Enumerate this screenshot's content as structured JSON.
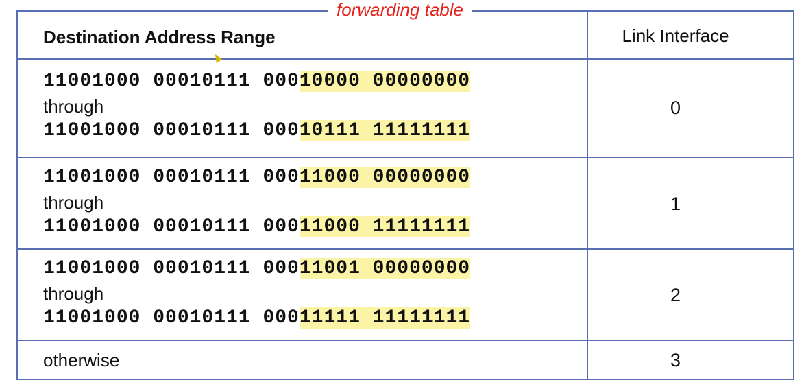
{
  "title": "forwarding table",
  "headers": {
    "destination": "Destination Address Range",
    "interface": "Link Interface"
  },
  "rows": [
    {
      "start": {
        "prefix": "11001000 00010111 000",
        "highlight": "10000 00000000"
      },
      "through": "through",
      "end": {
        "prefix": "11001000 00010111 000",
        "highlight": "10111 11111111"
      },
      "interface": "0"
    },
    {
      "start": {
        "prefix": "11001000 00010111 000",
        "highlight": "11000 00000000"
      },
      "through": "through",
      "end": {
        "prefix": "11001000 00010111 000",
        "highlight": "11000 11111111"
      },
      "interface": "1"
    },
    {
      "start": {
        "prefix": "11001000 00010111 000",
        "highlight": "11001 00000000"
      },
      "through": "through",
      "end": {
        "prefix": "11001000 00010111 000",
        "highlight": "11111 11111111"
      },
      "interface": "2"
    }
  ],
  "otherwise": {
    "label": "otherwise",
    "interface": "3"
  },
  "colors": {
    "border": "#5a6fb2",
    "title": "#e5231b",
    "highlight": "#fbf3a6"
  }
}
